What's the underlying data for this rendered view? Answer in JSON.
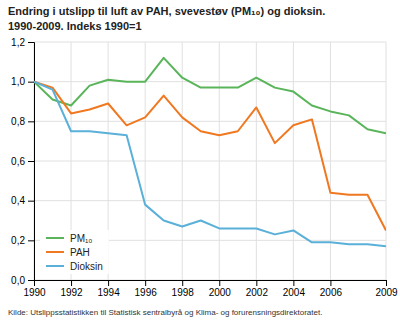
{
  "chart_data": {
    "type": "line",
    "title": "Endring i utslipp til luft av PAH, svevestøv (PM₁₀) og dioksin.",
    "subtitle": "1990-2009. Indeks 1990=1",
    "source": "Kilde: Utslippsstatistikken til Statistisk sentralbyrå og Klima- og forurensningsdirektoratet.",
    "x": [
      1990,
      1991,
      1992,
      1993,
      1994,
      1995,
      1996,
      1997,
      1998,
      1999,
      2000,
      2001,
      2002,
      2003,
      2004,
      2005,
      2006,
      2007,
      2008,
      2009
    ],
    "series": [
      {
        "name": "PM₁₀",
        "color": "#5ab55a",
        "values": [
          1.0,
          0.91,
          0.88,
          0.98,
          1.01,
          1.0,
          1.0,
          1.12,
          1.02,
          0.97,
          0.97,
          0.97,
          1.02,
          0.97,
          0.95,
          0.88,
          0.85,
          0.83,
          0.76,
          0.74
        ]
      },
      {
        "name": "PAH",
        "color": "#f07820",
        "values": [
          1.0,
          0.97,
          0.84,
          0.86,
          0.89,
          0.78,
          0.82,
          0.93,
          0.82,
          0.75,
          0.73,
          0.75,
          0.87,
          0.69,
          0.78,
          0.81,
          0.44,
          0.43,
          0.43,
          0.25
        ]
      },
      {
        "name": "Dioksin",
        "color": "#5ab0d8",
        "values": [
          1.0,
          0.96,
          0.75,
          0.75,
          0.74,
          0.73,
          0.38,
          0.3,
          0.27,
          0.3,
          0.26,
          0.26,
          0.26,
          0.23,
          0.25,
          0.19,
          0.19,
          0.18,
          0.18,
          0.17
        ]
      }
    ],
    "xlim": [
      1990,
      2009
    ],
    "xticks": [
      1990,
      1992,
      1994,
      1996,
      1998,
      2000,
      2002,
      2004,
      2006,
      2009
    ],
    "ylim": [
      0.0,
      1.2
    ],
    "yticks": [
      {
        "value": 0.0,
        "label": "0,0"
      },
      {
        "value": 0.2,
        "label": "0,2"
      },
      {
        "value": 0.4,
        "label": "0,4"
      },
      {
        "value": 0.6,
        "label": "0,6"
      },
      {
        "value": 0.8,
        "label": "0,8"
      },
      {
        "value": 1.0,
        "label": "1,0"
      },
      {
        "value": 1.2,
        "label": "1,2"
      }
    ],
    "grid": true,
    "legend": "lower left"
  }
}
